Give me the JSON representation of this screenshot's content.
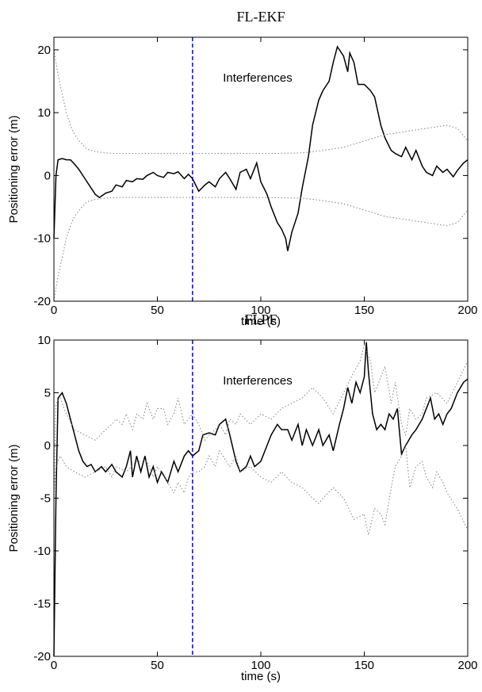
{
  "chart_data": [
    {
      "type": "line",
      "title": "FL-EKF",
      "xlabel": "time (s)",
      "ylabel": "Positioning error (m)",
      "annotation": "Interferences",
      "vline": 67,
      "vline_color": "#0000ff",
      "xlim": [
        0,
        200
      ],
      "xticks": [
        0,
        50,
        100,
        150,
        200
      ],
      "ylim": [
        -20,
        22
      ],
      "yticks": [
        -20,
        -10,
        0,
        10,
        20
      ],
      "series": [
        {
          "color": "#000000",
          "style": "solid",
          "x": [
            0,
            1,
            2,
            4,
            6,
            8,
            10,
            12,
            15,
            18,
            20,
            22,
            25,
            28,
            30,
            33,
            35,
            38,
            40,
            43,
            45,
            48,
            50,
            53,
            55,
            58,
            60,
            63,
            65,
            67,
            70,
            73,
            75,
            78,
            80,
            83,
            85,
            88,
            90,
            93,
            95,
            98,
            100,
            103,
            105,
            108,
            110,
            112,
            113,
            115,
            118,
            120,
            123,
            125,
            128,
            130,
            133,
            135,
            137,
            140,
            142,
            143,
            145,
            147,
            150,
            153,
            155,
            158,
            160,
            163,
            165,
            168,
            170,
            173,
            175,
            178,
            180,
            183,
            185,
            188,
            190,
            193,
            195,
            198,
            200
          ],
          "values": [
            -10,
            0,
            2.5,
            2.7,
            2.5,
            2.5,
            1.8,
            1,
            -0.5,
            -2,
            -3,
            -3.5,
            -2.8,
            -2.5,
            -1.5,
            -1.8,
            -0.8,
            -1,
            -0.5,
            -0.6,
            0,
            0.5,
            0,
            -0.3,
            0.5,
            0.3,
            0.6,
            -0.5,
            0.2,
            -0.5,
            -2.5,
            -1.5,
            -1,
            -1.8,
            -0.5,
            0.5,
            -0.5,
            -2.2,
            0.5,
            1,
            -0.5,
            2,
            -1,
            -3,
            -5,
            -7.5,
            -8.5,
            -10,
            -12,
            -9,
            -6,
            -2,
            3,
            8,
            12,
            13.5,
            15,
            18,
            20.5,
            19,
            16.5,
            19.5,
            18,
            14.5,
            14.5,
            13.5,
            12.5,
            8,
            6,
            4,
            3.5,
            3,
            4.5,
            2.5,
            4,
            1.5,
            0.5,
            0,
            1.5,
            0.5,
            1,
            -0.2,
            0.8,
            2,
            2.5
          ]
        },
        {
          "color": "#808080",
          "style": "dotted",
          "x": [
            0,
            2,
            4,
            6,
            8,
            10,
            13,
            16,
            20,
            25,
            30,
            50,
            100,
            120,
            130,
            140,
            150,
            160,
            170,
            180,
            190,
            195,
            200
          ],
          "values": [
            20,
            16,
            13,
            10,
            8,
            6.5,
            5.2,
            4.2,
            3.8,
            3.6,
            3.5,
            3.5,
            3.5,
            3.6,
            4,
            4.5,
            5.5,
            6.5,
            7,
            7.5,
            8,
            7.5,
            5.5
          ]
        },
        {
          "color": "#808080",
          "style": "dotted",
          "x": [
            0,
            2,
            4,
            6,
            8,
            10,
            13,
            16,
            20,
            25,
            30,
            50,
            100,
            120,
            130,
            140,
            150,
            160,
            170,
            180,
            190,
            195,
            200
          ],
          "values": [
            -20,
            -16,
            -13,
            -10,
            -8,
            -6.5,
            -5.2,
            -4.2,
            -3.8,
            -3.6,
            -3.5,
            -3.5,
            -3.5,
            -3.6,
            -4,
            -4.5,
            -5.5,
            -6.5,
            -7,
            -7.5,
            -8,
            -7.5,
            -5.5
          ]
        }
      ]
    },
    {
      "type": "line",
      "title": "FLPF",
      "xlabel": "time (s)",
      "ylabel": "Positioning error (m)",
      "annotation": "Interferences",
      "vline": 67,
      "vline_color": "#0000ff",
      "xlim": [
        0,
        200
      ],
      "xticks": [
        0,
        50,
        100,
        150,
        200
      ],
      "ylim": [
        -20,
        10
      ],
      "yticks": [
        -20,
        -15,
        -10,
        -5,
        0,
        5,
        10
      ],
      "series": [
        {
          "color": "#000000",
          "style": "solid",
          "x": [
            0,
            1,
            2,
            4,
            6,
            8,
            10,
            12,
            14,
            16,
            18,
            20,
            23,
            25,
            28,
            30,
            33,
            35,
            37,
            38,
            40,
            42,
            44,
            46,
            48,
            50,
            52,
            55,
            58,
            60,
            63,
            65,
            67,
            70,
            72,
            75,
            78,
            80,
            83,
            85,
            88,
            90,
            93,
            95,
            97,
            100,
            103,
            105,
            108,
            110,
            113,
            115,
            118,
            120,
            122,
            125,
            128,
            130,
            133,
            135,
            138,
            140,
            142,
            144,
            146,
            148,
            150,
            151,
            152,
            154,
            156,
            158,
            160,
            162,
            164,
            166,
            168,
            170,
            173,
            175,
            178,
            180,
            182,
            184,
            186,
            188,
            190,
            192,
            195,
            198,
            200
          ],
          "values": [
            -20,
            -5,
            4.5,
            5,
            4,
            2.5,
            1,
            -0.5,
            -1.5,
            -2,
            -1.8,
            -2.5,
            -2,
            -2.5,
            -1.8,
            -2.5,
            -3,
            -2,
            -0.5,
            -3,
            -1,
            -2.5,
            -1,
            -3,
            -2,
            -3.5,
            -2.5,
            -3.5,
            -1.5,
            -2.5,
            -1,
            -0.5,
            -1,
            -0.5,
            1,
            1.2,
            1,
            2,
            2.5,
            1,
            -1.5,
            -2.5,
            -2,
            -1,
            -2,
            -1.5,
            0,
            1,
            2,
            1.5,
            1.5,
            0.5,
            2,
            0,
            1.5,
            0,
            1.5,
            0,
            1,
            -0.5,
            2,
            3.5,
            5.5,
            4,
            6,
            5,
            6.5,
            9.8,
            7,
            3,
            1.5,
            2,
            1.5,
            3,
            2.5,
            3.5,
            -0.8,
            0,
            1,
            1.5,
            2.5,
            3.5,
            4.5,
            2.5,
            3,
            2,
            3,
            3.5,
            5,
            6,
            6.3
          ]
        },
        {
          "color": "#808080",
          "style": "dotted",
          "x": [
            0,
            1,
            3,
            6,
            10,
            15,
            20,
            25,
            28,
            30,
            33,
            35,
            38,
            40,
            43,
            45,
            48,
            50,
            53,
            55,
            58,
            60,
            63,
            65,
            67,
            70,
            73,
            75,
            78,
            80,
            83,
            85,
            88,
            90,
            95,
            100,
            105,
            110,
            115,
            120,
            125,
            130,
            135,
            140,
            145,
            148,
            150,
            153,
            155,
            158,
            160,
            163,
            165,
            168,
            170,
            172,
            175,
            178,
            180,
            185,
            190,
            195,
            200
          ],
          "values": [
            -5,
            4,
            4.5,
            3,
            1.5,
            1,
            0.5,
            1.5,
            2,
            2.5,
            2,
            3,
            1.5,
            3,
            2.5,
            4,
            2.5,
            3.5,
            3.5,
            2,
            3,
            4.5,
            2,
            2.5,
            3,
            2,
            0.5,
            1,
            1.5,
            2,
            1,
            2.5,
            2,
            3,
            2,
            3,
            2.5,
            3.5,
            4,
            4.5,
            5.5,
            4.5,
            3,
            5,
            7,
            8,
            9.5,
            8,
            5,
            6.5,
            7.5,
            4,
            6,
            2,
            1,
            3.5,
            2.5,
            3,
            4.5,
            5,
            4,
            6,
            8
          ]
        },
        {
          "color": "#808080",
          "style": "dotted",
          "x": [
            0,
            1,
            3,
            6,
            10,
            15,
            20,
            25,
            28,
            30,
            35,
            40,
            45,
            48,
            50,
            55,
            58,
            60,
            63,
            65,
            67,
            70,
            73,
            75,
            78,
            80,
            85,
            88,
            90,
            95,
            100,
            105,
            110,
            115,
            120,
            125,
            128,
            130,
            135,
            140,
            145,
            150,
            152,
            155,
            158,
            160,
            163,
            165,
            168,
            170,
            172,
            175,
            178,
            180,
            183,
            185,
            188,
            190,
            195,
            200
          ],
          "values": [
            -5,
            -2,
            -1,
            -2,
            -2.5,
            -3,
            -2.5,
            -2,
            -3,
            -2,
            -2.5,
            -1.5,
            -1.5,
            -3,
            -2,
            -3.5,
            -4.5,
            -3.5,
            -4.5,
            -3,
            -2.5,
            -2.5,
            -2,
            -1,
            -2,
            -0.5,
            -2,
            -1,
            -2.5,
            -2,
            -3,
            -3.5,
            -2.5,
            -3.5,
            -4,
            -5,
            -5.5,
            -5,
            -4,
            -5,
            -7,
            -6.5,
            -8.5,
            -6,
            -6.5,
            -7.5,
            -4,
            -2,
            -1,
            0,
            -4,
            -2,
            -1.5,
            -3,
            -4,
            -2.5,
            -3.5,
            -4.5,
            -6,
            -8
          ]
        }
      ]
    }
  ]
}
